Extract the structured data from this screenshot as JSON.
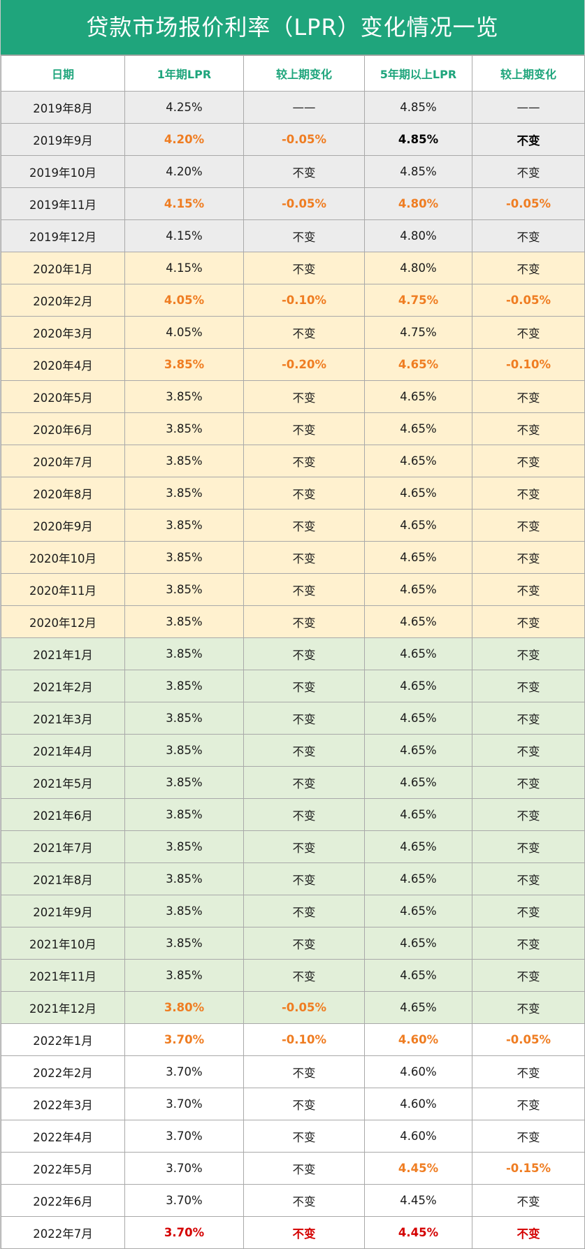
{
  "title": "贷款市场报价利率（LPR）变化情况一览",
  "colors": {
    "header_bg": "#1fa57c",
    "header_text": "#ffffff",
    "column_header_text": "#1fa57c",
    "row_2019": "#ececec",
    "row_2020": "#fff1cf",
    "row_2021": "#e2efd9",
    "row_2022": "#ffffff",
    "change_highlight": "#ef7d22",
    "latest_highlight": "#d40000"
  },
  "columns": [
    "日期",
    "1年期LPR",
    "较上期变化",
    "5年期以上LPR",
    "较上期变化"
  ],
  "rows": [
    {
      "group": "2019",
      "cells": [
        "2019年8月",
        "4.25%",
        "——",
        "4.85%",
        "——"
      ],
      "style": [
        "",
        "",
        "",
        "",
        ""
      ]
    },
    {
      "group": "2019",
      "cells": [
        "2019年9月",
        "4.20%",
        "-0.05%",
        "4.85%",
        "不变"
      ],
      "style": [
        "",
        "orange",
        "orange",
        "bold",
        "bold"
      ]
    },
    {
      "group": "2019",
      "cells": [
        "2019年10月",
        "4.20%",
        "不变",
        "4.85%",
        "不变"
      ],
      "style": [
        "",
        "",
        "",
        "",
        ""
      ]
    },
    {
      "group": "2019",
      "cells": [
        "2019年11月",
        "4.15%",
        "-0.05%",
        "4.80%",
        "-0.05%"
      ],
      "style": [
        "",
        "orange",
        "orange",
        "orange",
        "orange"
      ]
    },
    {
      "group": "2019",
      "cells": [
        "2019年12月",
        "4.15%",
        "不变",
        "4.80%",
        "不变"
      ],
      "style": [
        "",
        "",
        "",
        "",
        ""
      ]
    },
    {
      "group": "2020",
      "cells": [
        "2020年1月",
        "4.15%",
        "不变",
        "4.80%",
        "不变"
      ],
      "style": [
        "",
        "",
        "",
        "",
        ""
      ]
    },
    {
      "group": "2020",
      "cells": [
        "2020年2月",
        "4.05%",
        "-0.10%",
        "4.75%",
        "-0.05%"
      ],
      "style": [
        "",
        "orange",
        "orange",
        "orange",
        "orange"
      ]
    },
    {
      "group": "2020",
      "cells": [
        "2020年3月",
        "4.05%",
        "不变",
        "4.75%",
        "不变"
      ],
      "style": [
        "",
        "",
        "",
        "",
        ""
      ]
    },
    {
      "group": "2020",
      "cells": [
        "2020年4月",
        "3.85%",
        "-0.20%",
        "4.65%",
        "-0.10%"
      ],
      "style": [
        "",
        "orange",
        "orange",
        "orange",
        "orange"
      ]
    },
    {
      "group": "2020",
      "cells": [
        "2020年5月",
        "3.85%",
        "不变",
        "4.65%",
        "不变"
      ],
      "style": [
        "",
        "",
        "",
        "",
        ""
      ]
    },
    {
      "group": "2020",
      "cells": [
        "2020年6月",
        "3.85%",
        "不变",
        "4.65%",
        "不变"
      ],
      "style": [
        "",
        "",
        "",
        "",
        ""
      ]
    },
    {
      "group": "2020",
      "cells": [
        "2020年7月",
        "3.85%",
        "不变",
        "4.65%",
        "不变"
      ],
      "style": [
        "",
        "",
        "",
        "",
        ""
      ]
    },
    {
      "group": "2020",
      "cells": [
        "2020年8月",
        "3.85%",
        "不变",
        "4.65%",
        "不变"
      ],
      "style": [
        "",
        "",
        "",
        "",
        ""
      ]
    },
    {
      "group": "2020",
      "cells": [
        "2020年9月",
        "3.85%",
        "不变",
        "4.65%",
        "不变"
      ],
      "style": [
        "",
        "",
        "",
        "",
        ""
      ]
    },
    {
      "group": "2020",
      "cells": [
        "2020年10月",
        "3.85%",
        "不变",
        "4.65%",
        "不变"
      ],
      "style": [
        "",
        "",
        "",
        "",
        ""
      ]
    },
    {
      "group": "2020",
      "cells": [
        "2020年11月",
        "3.85%",
        "不变",
        "4.65%",
        "不变"
      ],
      "style": [
        "",
        "",
        "",
        "",
        ""
      ]
    },
    {
      "group": "2020",
      "cells": [
        "2020年12月",
        "3.85%",
        "不变",
        "4.65%",
        "不变"
      ],
      "style": [
        "",
        "",
        "",
        "",
        ""
      ]
    },
    {
      "group": "2021",
      "cells": [
        "2021年1月",
        "3.85%",
        "不变",
        "4.65%",
        "不变"
      ],
      "style": [
        "",
        "",
        "",
        "",
        ""
      ]
    },
    {
      "group": "2021",
      "cells": [
        "2021年2月",
        "3.85%",
        "不变",
        "4.65%",
        "不变"
      ],
      "style": [
        "",
        "",
        "",
        "",
        ""
      ]
    },
    {
      "group": "2021",
      "cells": [
        "2021年3月",
        "3.85%",
        "不变",
        "4.65%",
        "不变"
      ],
      "style": [
        "",
        "",
        "",
        "",
        ""
      ]
    },
    {
      "group": "2021",
      "cells": [
        "2021年4月",
        "3.85%",
        "不变",
        "4.65%",
        "不变"
      ],
      "style": [
        "",
        "",
        "",
        "",
        ""
      ]
    },
    {
      "group": "2021",
      "cells": [
        "2021年5月",
        "3.85%",
        "不变",
        "4.65%",
        "不变"
      ],
      "style": [
        "",
        "",
        "",
        "",
        ""
      ]
    },
    {
      "group": "2021",
      "cells": [
        "2021年6月",
        "3.85%",
        "不变",
        "4.65%",
        "不变"
      ],
      "style": [
        "",
        "",
        "",
        "",
        ""
      ]
    },
    {
      "group": "2021",
      "cells": [
        "2021年7月",
        "3.85%",
        "不变",
        "4.65%",
        "不变"
      ],
      "style": [
        "",
        "",
        "",
        "",
        ""
      ]
    },
    {
      "group": "2021",
      "cells": [
        "2021年8月",
        "3.85%",
        "不变",
        "4.65%",
        "不变"
      ],
      "style": [
        "",
        "",
        "",
        "",
        ""
      ]
    },
    {
      "group": "2021",
      "cells": [
        "2021年9月",
        "3.85%",
        "不变",
        "4.65%",
        "不变"
      ],
      "style": [
        "",
        "",
        "",
        "",
        ""
      ]
    },
    {
      "group": "2021",
      "cells": [
        "2021年10月",
        "3.85%",
        "不变",
        "4.65%",
        "不变"
      ],
      "style": [
        "",
        "",
        "",
        "",
        ""
      ]
    },
    {
      "group": "2021",
      "cells": [
        "2021年11月",
        "3.85%",
        "不变",
        "4.65%",
        "不变"
      ],
      "style": [
        "",
        "",
        "",
        "",
        ""
      ]
    },
    {
      "group": "2021",
      "cells": [
        "2021年12月",
        "3.80%",
        "-0.05%",
        "4.65%",
        "不变"
      ],
      "style": [
        "",
        "orange",
        "orange",
        "",
        ""
      ]
    },
    {
      "group": "2022",
      "cells": [
        "2022年1月",
        "3.70%",
        "-0.10%",
        "4.60%",
        "-0.05%"
      ],
      "style": [
        "",
        "orange",
        "orange",
        "orange",
        "orange"
      ]
    },
    {
      "group": "2022",
      "cells": [
        "2022年2月",
        "3.70%",
        "不变",
        "4.60%",
        "不变"
      ],
      "style": [
        "",
        "",
        "",
        "",
        ""
      ]
    },
    {
      "group": "2022",
      "cells": [
        "2022年3月",
        "3.70%",
        "不变",
        "4.60%",
        "不变"
      ],
      "style": [
        "",
        "",
        "",
        "",
        ""
      ]
    },
    {
      "group": "2022",
      "cells": [
        "2022年4月",
        "3.70%",
        "不变",
        "4.60%",
        "不变"
      ],
      "style": [
        "",
        "",
        "",
        "",
        ""
      ]
    },
    {
      "group": "2022",
      "cells": [
        "2022年5月",
        "3.70%",
        "不变",
        "4.45%",
        "-0.15%"
      ],
      "style": [
        "",
        "",
        "",
        "orange",
        "orange"
      ]
    },
    {
      "group": "2022",
      "cells": [
        "2022年6月",
        "3.70%",
        "不变",
        "4.45%",
        "不变"
      ],
      "style": [
        "",
        "",
        "",
        "",
        ""
      ]
    },
    {
      "group": "2022",
      "cells": [
        "2022年7月",
        "3.70%",
        "不变",
        "4.45%",
        "不变"
      ],
      "style": [
        "",
        "red",
        "red",
        "red",
        "red"
      ]
    }
  ]
}
